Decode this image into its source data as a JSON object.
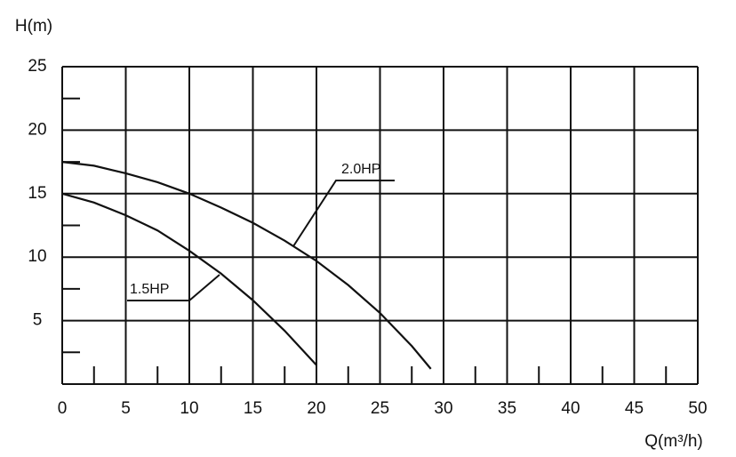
{
  "chart_data": {
    "type": "line",
    "xlabel": "Q(m³/h)",
    "ylabel": "H(m)",
    "xlim": [
      0,
      50
    ],
    "ylim": [
      0,
      25
    ],
    "xticks": [
      0,
      5,
      10,
      15,
      20,
      25,
      30,
      35,
      40,
      45,
      50
    ],
    "yticks": [
      5,
      10,
      15,
      20,
      25
    ],
    "xminorticks": [
      2.5,
      7.5,
      12.5,
      17.5,
      22.5,
      27.5,
      32.5,
      37.5,
      42.5,
      47.5
    ],
    "yminorticks": [
      2.5,
      7.5,
      12.5,
      17.5,
      22.5
    ],
    "grid": true,
    "series": [
      {
        "name": "1.5HP",
        "color": "#111111",
        "x": [
          0,
          2.5,
          5,
          7.5,
          10,
          12.5,
          15,
          17.5,
          20
        ],
        "values": [
          15,
          14.3,
          13.3,
          12.1,
          10.5,
          8.7,
          6.6,
          4.2,
          1.5
        ]
      },
      {
        "name": "2.0HP",
        "color": "#111111",
        "x": [
          0,
          2.5,
          5,
          7.5,
          10,
          12.5,
          15,
          17.5,
          20,
          22.5,
          25,
          27.5,
          29
        ],
        "values": [
          17.5,
          17.2,
          16.6,
          15.9,
          15,
          13.9,
          12.7,
          11.3,
          9.7,
          7.8,
          5.6,
          3.0,
          1.2
        ]
      }
    ]
  }
}
